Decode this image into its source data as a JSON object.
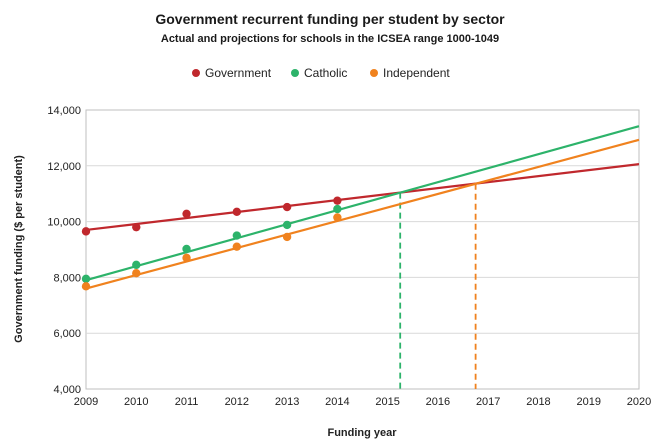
{
  "chart_data": {
    "type": "scatter",
    "title": "Government recurrent funding per student by sector",
    "subtitle": "Actual and projections for schools in the ICSEA range 1000-1049",
    "xlabel": "Funding year",
    "ylabel": "Government funding ($ per student)",
    "xlim": [
      2009,
      2020
    ],
    "ylim": [
      4000,
      14000
    ],
    "x_ticks": [
      2009,
      2010,
      2011,
      2012,
      2013,
      2014,
      2015,
      2016,
      2017,
      2018,
      2019,
      2020
    ],
    "y_ticks": [
      4000,
      6000,
      8000,
      10000,
      12000,
      14000
    ],
    "y_tick_labels": [
      "4,000",
      "6,000",
      "8,000",
      "10,000",
      "12,000",
      "14,000"
    ],
    "grid": "horizontal",
    "legend_position": "top",
    "series": [
      {
        "name": "Government",
        "color": "#c0282d",
        "points": [
          [
            2009,
            9650
          ],
          [
            2010,
            9800
          ],
          [
            2011,
            10280
          ],
          [
            2012,
            10350
          ],
          [
            2013,
            10520
          ],
          [
            2014,
            10750
          ]
        ],
        "trend": [
          [
            2009,
            9700
          ],
          [
            2020,
            12060
          ]
        ]
      },
      {
        "name": "Catholic",
        "color": "#2db36a",
        "points": [
          [
            2009,
            7950
          ],
          [
            2010,
            8450
          ],
          [
            2011,
            9020
          ],
          [
            2012,
            9500
          ],
          [
            2013,
            9880
          ],
          [
            2014,
            10450
          ]
        ],
        "trend": [
          [
            2009,
            7900
          ],
          [
            2020,
            13420
          ]
        ]
      },
      {
        "name": "Independent",
        "color": "#f0821e",
        "points": [
          [
            2009,
            7680
          ],
          [
            2010,
            8150
          ],
          [
            2011,
            8700
          ],
          [
            2012,
            9100
          ],
          [
            2013,
            9450
          ],
          [
            2014,
            10150
          ]
        ],
        "trend": [
          [
            2009,
            7600
          ],
          [
            2020,
            12930
          ]
        ]
      }
    ],
    "reference_lines": [
      {
        "series": "Catholic",
        "x": 2015.25,
        "color": "#2db36a"
      },
      {
        "series": "Independent",
        "x": 2016.75,
        "color": "#f0821e"
      }
    ]
  }
}
